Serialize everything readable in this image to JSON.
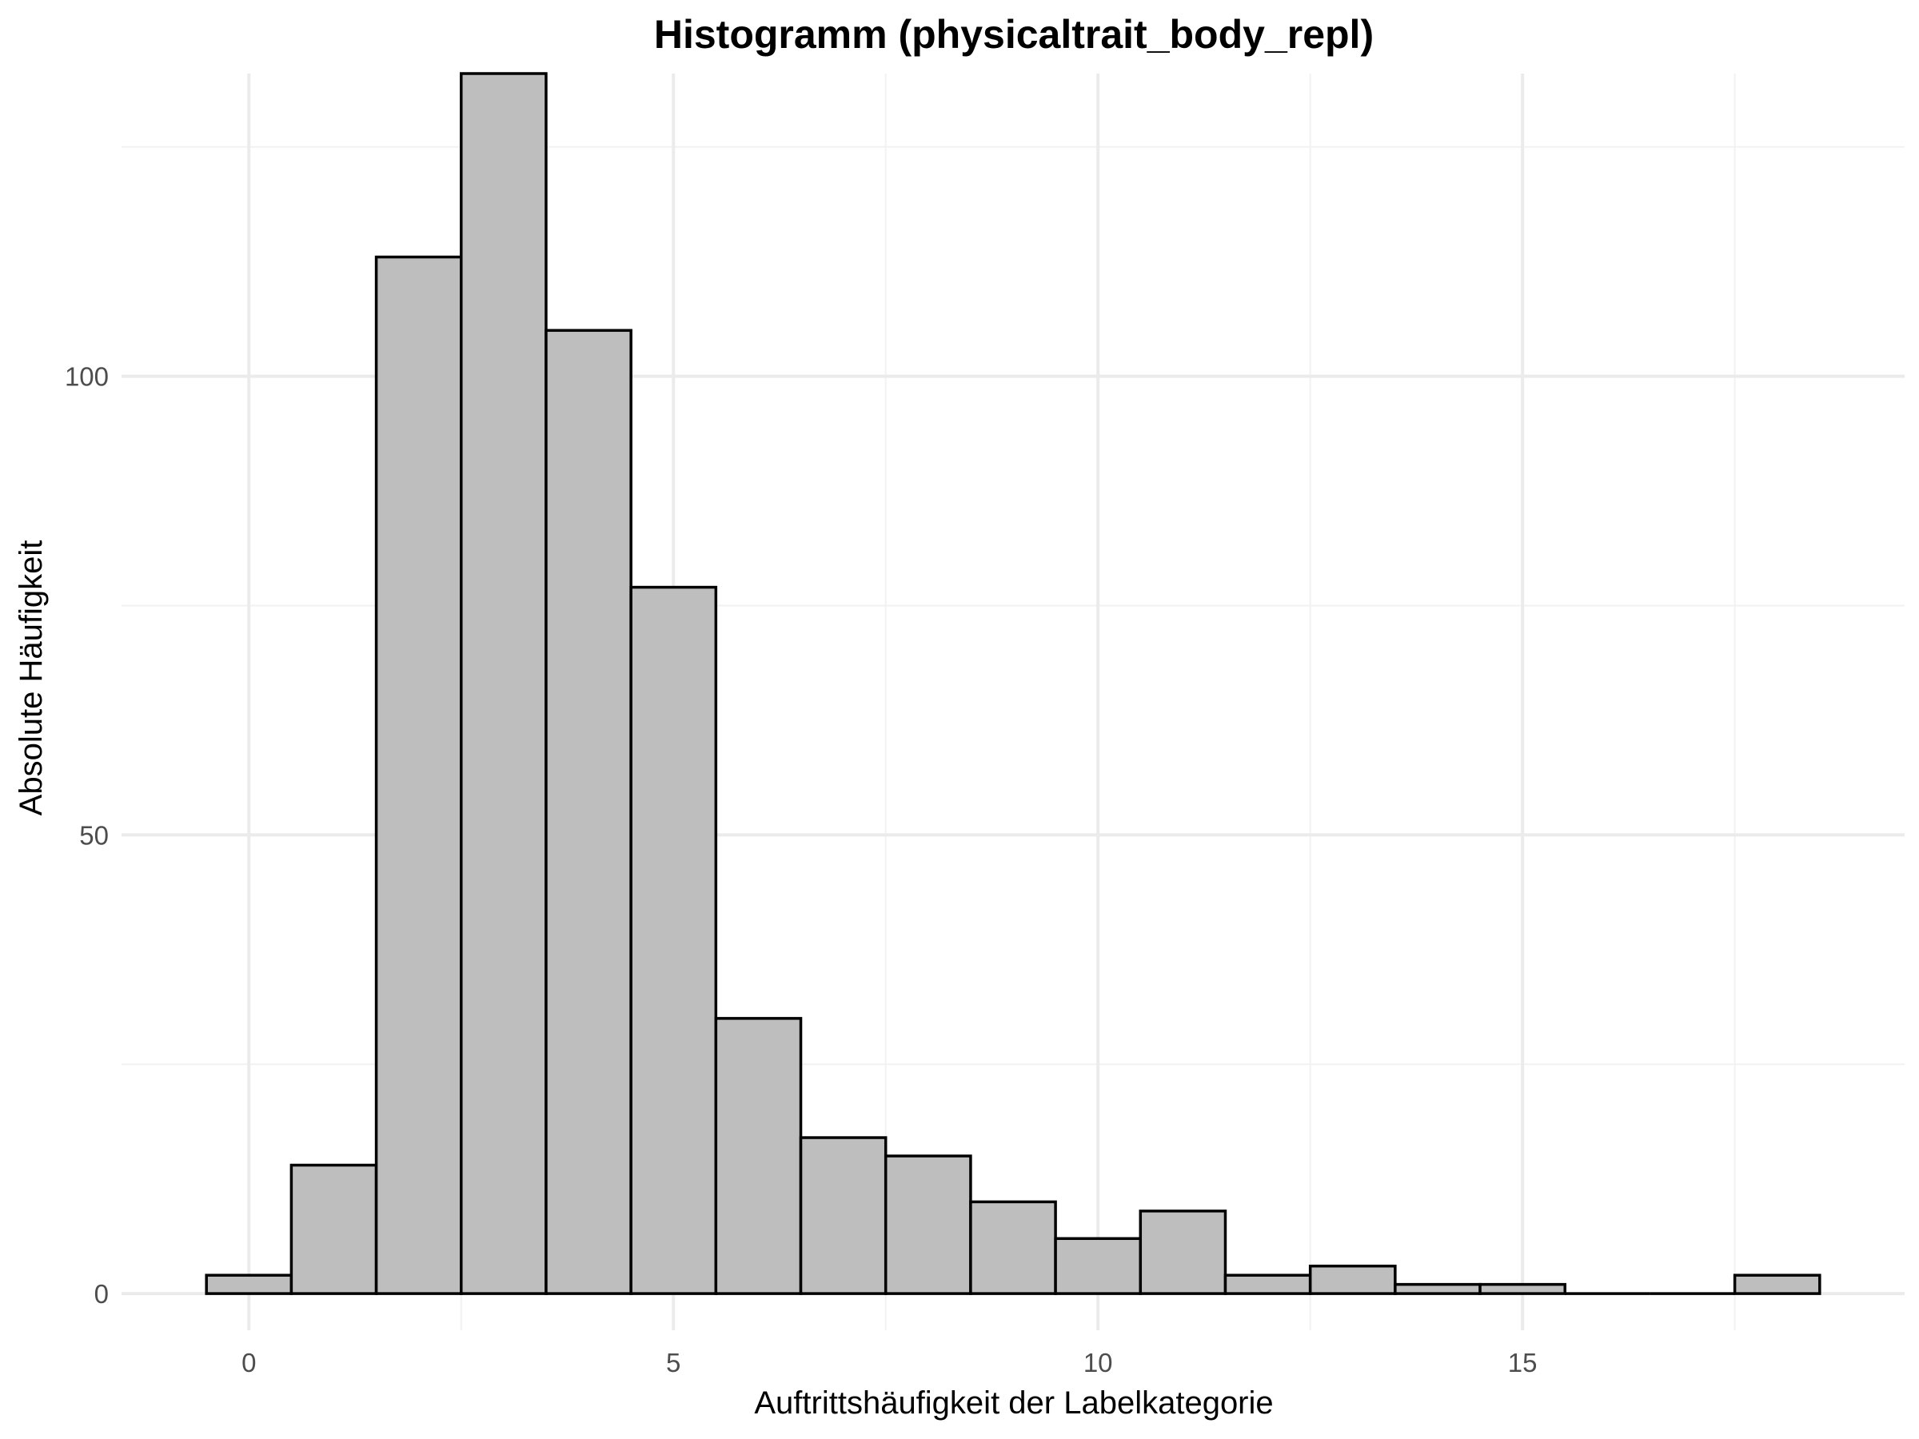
{
  "chart_data": {
    "type": "bar",
    "title": "Histogramm (physicaltrait_body_repl)",
    "xlabel": "Auftrittshäufigkeit der Labelkategorie",
    "ylabel": "Absolute Häufigkeit",
    "xlim": [
      -1.5,
      19.5
    ],
    "ylim": [
      -4,
      133
    ],
    "x_ticks": [
      0,
      5,
      10,
      15
    ],
    "y_ticks": [
      0,
      50,
      100
    ],
    "grid": true,
    "bin_width": 1,
    "x": [
      0,
      1,
      2,
      3,
      4,
      5,
      6,
      7,
      8,
      9,
      10,
      11,
      12,
      13,
      14,
      15,
      16,
      17,
      18
    ],
    "values": [
      2,
      14,
      113,
      133,
      105,
      77,
      30,
      17,
      15,
      10,
      6,
      9,
      2,
      3,
      1,
      1,
      0,
      0,
      2
    ],
    "colors": {
      "fill": "#bebebe",
      "stroke": "#000000",
      "grid": "#ebebeb"
    }
  }
}
